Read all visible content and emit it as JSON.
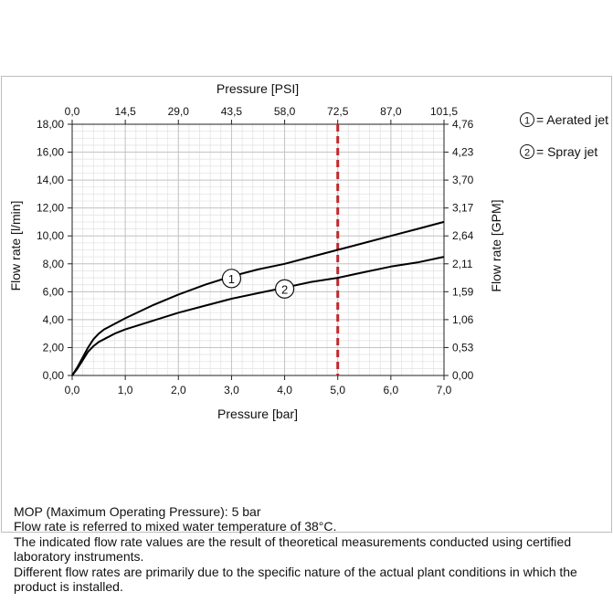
{
  "chart_data": {
    "type": "line",
    "title": "",
    "xlabel": "Pressure [bar]",
    "xlabel_top": "Pressure [PSI]",
    "ylabel": "Flow rate [l/min]",
    "ylabel_right": "Flow rate [GPM]",
    "xlim": [
      0,
      7
    ],
    "ylim": [
      0,
      18
    ],
    "grid": true,
    "x_ticks": [
      "0,0",
      "1,0",
      "2,0",
      "3,0",
      "4,0",
      "5,0",
      "6,0",
      "7,0"
    ],
    "x_top_ticks": [
      "0,0",
      "14,5",
      "29,0",
      "43,5",
      "58,0",
      "72,5",
      "87,0",
      "101,5"
    ],
    "y_ticks": [
      "0,00",
      "2,00",
      "4,00",
      "6,00",
      "8,00",
      "10,00",
      "12,00",
      "14,00",
      "16,00",
      "18,00"
    ],
    "y_right_ticks": [
      "0,00",
      "0,53",
      "1,06",
      "1,59",
      "2,11",
      "2,64",
      "3,17",
      "3,70",
      "4,23",
      "4,76"
    ],
    "series": [
      {
        "name": "1",
        "color": "#000000",
        "x": [
          0,
          0.1,
          0.2,
          0.3,
          0.4,
          0.5,
          0.6,
          0.8,
          1,
          1.5,
          2,
          2.5,
          3,
          3.5,
          4,
          4.5,
          5,
          5.5,
          6,
          6.5,
          7
        ],
        "y": [
          0,
          0.6,
          1.3,
          2.0,
          2.6,
          3.0,
          3.3,
          3.7,
          4.1,
          5.0,
          5.8,
          6.5,
          7.1,
          7.6,
          8.0,
          8.5,
          9.0,
          9.5,
          10.0,
          10.5,
          11.0
        ]
      },
      {
        "name": "2",
        "color": "#000000",
        "x": [
          0,
          0.1,
          0.2,
          0.3,
          0.4,
          0.5,
          0.6,
          0.8,
          1,
          1.5,
          2,
          2.5,
          3,
          3.5,
          4,
          4.5,
          5,
          5.5,
          6,
          6.5,
          7
        ],
        "y": [
          0,
          0.5,
          1.1,
          1.7,
          2.1,
          2.4,
          2.6,
          3.0,
          3.3,
          3.9,
          4.5,
          5.0,
          5.5,
          5.9,
          6.3,
          6.7,
          7.0,
          7.4,
          7.8,
          8.1,
          8.5
        ]
      }
    ],
    "reference_line": {
      "x": 5.0,
      "color": "#c0282d",
      "style": "dashed"
    },
    "curve_markers": [
      {
        "number": "1",
        "x": 3.0,
        "y": 6.95
      },
      {
        "number": "2",
        "x": 4.0,
        "y": 6.2
      }
    ],
    "legend": {
      "placement": "top-right",
      "items": [
        {
          "number": "1",
          "label": "= Aerated jet"
        },
        {
          "number": "2",
          "label": "= Spray jet"
        }
      ]
    }
  },
  "notes": [
    "MOP (Maximum Operating Pressure): 5 bar",
    "Flow rate is referred to mixed water temperature of 38°C.",
    "The indicated flow rate values are the result of theoretical measurements conducted using certified laboratory instruments.",
    "Different flow rates are primarily due to the specific nature of the actual plant conditions in which the product is installed."
  ]
}
